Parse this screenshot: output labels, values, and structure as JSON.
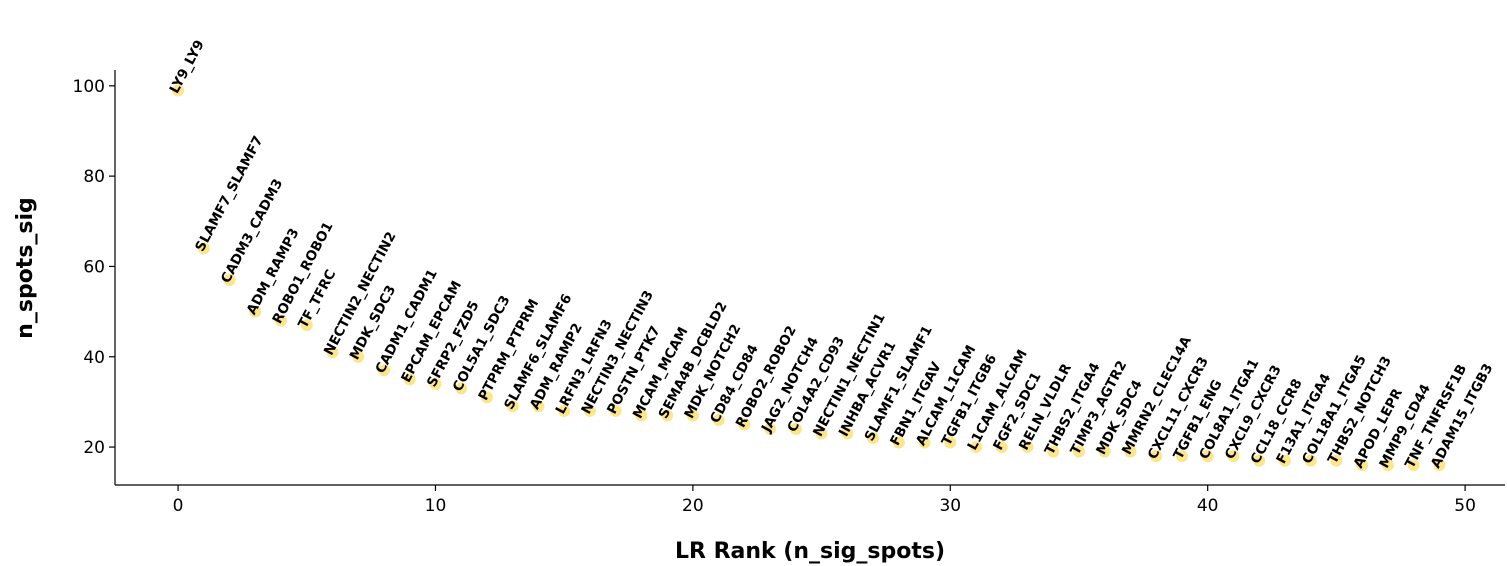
{
  "chart_data": {
    "type": "scatter",
    "x_label": "LR Rank (n_sig_spots)",
    "y_label": "n_spots_sig",
    "color": "#fde68a",
    "x": [
      0,
      1,
      2,
      3,
      4,
      5,
      6,
      7,
      8,
      9,
      10,
      11,
      12,
      13,
      14,
      15,
      16,
      17,
      18,
      19,
      20,
      21,
      22,
      23,
      24,
      25,
      26,
      27,
      28,
      29,
      30,
      31,
      32,
      33,
      34,
      35,
      36,
      37,
      38,
      39,
      40,
      41,
      42,
      43,
      44,
      45,
      46,
      47,
      48,
      49
    ],
    "values": [
      99,
      64,
      57,
      50,
      48,
      47,
      41,
      40,
      37,
      35,
      34,
      33,
      31,
      29,
      29,
      28,
      28,
      28,
      27,
      27,
      27,
      26,
      25,
      24,
      24,
      23,
      23,
      22,
      21,
      21,
      21,
      20,
      20,
      20,
      19,
      19,
      19,
      19,
      18,
      18,
      18,
      18,
      17,
      17,
      17,
      17,
      16,
      16,
      16,
      16
    ],
    "point_labels": [
      "LY9_LY9",
      "SLAMF7_SLAMF7",
      "CADM3_CADM3",
      "ADM_RAMP3",
      "ROBO1_ROBO1",
      "TF_TFRC",
      "NECTIN2_NECTIN2",
      "MDK_SDC3",
      "CADM1_CADM1",
      "EPCAM_EPCAM",
      "SFRP2_FZD5",
      "COL5A1_SDC3",
      "PTPRM_PTPRM",
      "SLAMF6_SLAMF6",
      "ADM_RAMP2",
      "LRFN3_LRFN3",
      "NECTIN3_NECTIN3",
      "POSTN_PTK7",
      "MCAM_MCAM",
      "SEMA4B_DCBLD2",
      "MDK_NOTCH2",
      "CD84_CD84",
      "ROBO2_ROBO2",
      "JAG2_NOTCH4",
      "COL4A2_CD93",
      "NECTIN1_NECTIN1",
      "INHBA_ACVR1",
      "SLAMF1_SLAMF1",
      "FBN1_ITGAV",
      "ALCAM_L1CAM",
      "TGFB1_ITGB6",
      "L1CAM_ALCAM",
      "FGF2_SDC1",
      "RELN_VLDLR",
      "THBS2_ITGA4",
      "TIMP3_AGTR2",
      "MDK_SDC4",
      "MMRN2_CLEC14A",
      "CXCL11_CXCR3",
      "TGFB1_ENG",
      "COL8A1_ITGA1",
      "CXCL9_CXCR3",
      "CCL18_CCR8",
      "F13A1_ITGA4",
      "COL18A1_ITGA5",
      "THBS2_NOTCH3",
      "APOD_LEPR",
      "MMP9_CD44",
      "TNF_TNFRSF1B",
      "ADAM15_ITGB3"
    ],
    "xlim": [
      -2.45,
      51.55
    ],
    "ylim": [
      11.6,
      103.5
    ],
    "xticks": [
      0,
      10,
      20,
      30,
      40,
      50
    ],
    "yticks": [
      20,
      40,
      60,
      80,
      100
    ]
  }
}
